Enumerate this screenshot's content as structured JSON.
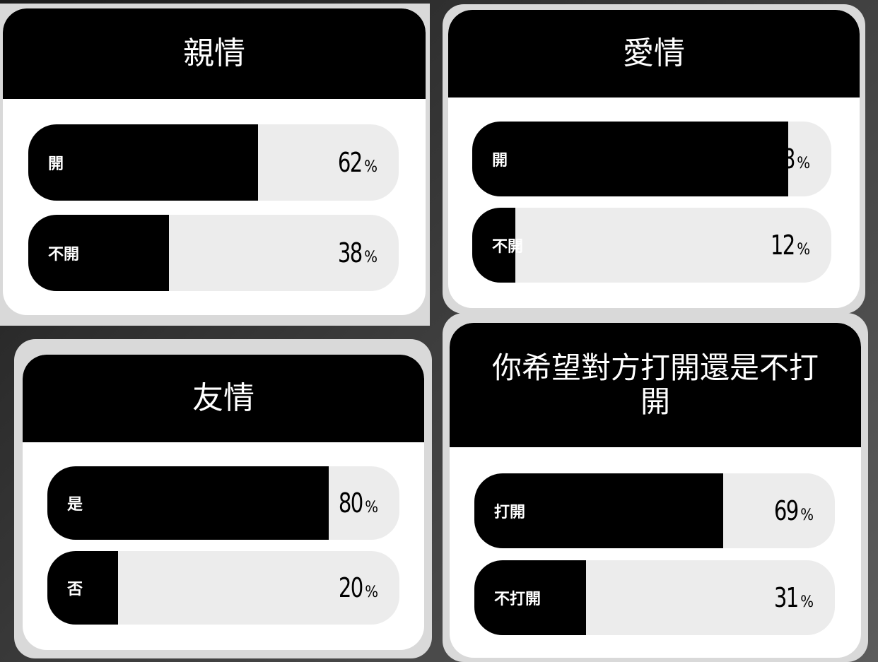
{
  "cards": [
    {
      "title": "親情",
      "options": [
        {
          "label": "開",
          "percent": 62,
          "unit": "%"
        },
        {
          "label": "不開",
          "percent": 38,
          "unit": "%"
        }
      ]
    },
    {
      "title": "愛情",
      "options": [
        {
          "label": "開",
          "percent": 88,
          "unit": "%"
        },
        {
          "label": "不開",
          "percent": 12,
          "unit": "%"
        }
      ]
    },
    {
      "title": "友情",
      "options": [
        {
          "label": "是",
          "percent": 80,
          "unit": "%"
        },
        {
          "label": "否",
          "percent": 20,
          "unit": "%"
        }
      ]
    },
    {
      "title": "你希望對方打開還是不打開",
      "options": [
        {
          "label": "打開",
          "percent": 69,
          "unit": "%"
        },
        {
          "label": "不打開",
          "percent": 31,
          "unit": "%"
        }
      ]
    }
  ]
}
